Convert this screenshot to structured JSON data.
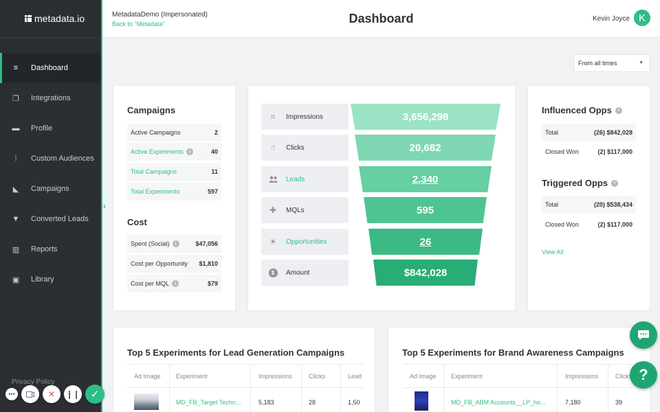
{
  "app": {
    "logo": "metadata.io",
    "title": "Dashboard"
  },
  "header": {
    "impersonation": "MetadataDemo (Impersonated)",
    "back_link": "Back to \"Metadata\"",
    "user_name": "Kevin Joyce",
    "avatar_initial": "K"
  },
  "sidebar": {
    "items": [
      {
        "label": "Dashboard",
        "icon": "database-icon",
        "glyph": "≡"
      },
      {
        "label": "Integrations",
        "icon": "integrations-icon",
        "glyph": "❐"
      },
      {
        "label": "Profile",
        "icon": "folder-icon",
        "glyph": "▬"
      },
      {
        "label": "Custom Audiences",
        "icon": "sliders-icon",
        "glyph": "⁞"
      },
      {
        "label": "Campaigns",
        "icon": "megaphone-icon",
        "glyph": "◣"
      },
      {
        "label": "Converted Leads",
        "icon": "filter-icon",
        "glyph": "▼"
      },
      {
        "label": "Reports",
        "icon": "bar-chart-icon",
        "glyph": "▥"
      },
      {
        "label": "Library",
        "icon": "image-icon",
        "glyph": "▣"
      }
    ],
    "privacy": "Privacy Policy"
  },
  "time_filter": {
    "value": "From all times"
  },
  "campaigns": {
    "title": "Campaigns",
    "rows": [
      {
        "label": "Active Campaigns",
        "value": "2"
      },
      {
        "label": "Active Experiments",
        "value": "40"
      },
      {
        "label": "Total Campaigns",
        "value": "11"
      },
      {
        "label": "Total Experiments",
        "value": "597"
      }
    ]
  },
  "cost": {
    "title": "Cost",
    "rows": [
      {
        "label": "Spent (Social)",
        "value": "$47,056"
      },
      {
        "label": "Cost per Opportunity",
        "value": "$1,810"
      },
      {
        "label": "Cost per MQL",
        "value": "$79"
      }
    ]
  },
  "funnel": [
    {
      "label": "Impressions",
      "value": "3,656,298",
      "icon": "scan-icon",
      "glyph": "⌗",
      "color": "#9be3c5"
    },
    {
      "label": "Clicks",
      "value": "20,682",
      "icon": "pointer-icon",
      "glyph": "☝",
      "color": "#7fd8b3"
    },
    {
      "label": "Leads",
      "value": "2,340",
      "icon": "users-icon",
      "glyph": "👥",
      "color": "#66cfa3"
    },
    {
      "label": "MQLs",
      "value": "595",
      "icon": "user-plus-icon",
      "glyph": "✚",
      "color": "#4fc493"
    },
    {
      "label": "Opportunities",
      "value": "26",
      "icon": "bulb-icon",
      "glyph": "☀",
      "color": "#3cb985"
    },
    {
      "label": "Amount",
      "value": "$842,028",
      "icon": "dollar-icon",
      "glyph": "$",
      "color": "#2aac76"
    }
  ],
  "influenced": {
    "title": "Influenced Opps",
    "rows": [
      {
        "label": "Total",
        "value": "(26) $842,028"
      },
      {
        "label": "Closed Won",
        "value": "(2) $117,000"
      }
    ]
  },
  "triggered": {
    "title": "Triggered Opps",
    "rows": [
      {
        "label": "Total",
        "value": "(20) $538,434"
      },
      {
        "label": "Closed Won",
        "value": "(2) $117,000"
      }
    ],
    "view_all": "View All"
  },
  "lead_table": {
    "title": "Top 5 Experiments for Lead Generation Campaigns",
    "headers": [
      "Ad Image",
      "Experiment",
      "Impressions",
      "Clicks",
      "Lead"
    ],
    "row": {
      "experiment": "MD_FB_Target Techn...",
      "impressions": "5,183",
      "clicks": "28",
      "lead": "1,50"
    }
  },
  "brand_table": {
    "title": "Top 5 Experiments for Brand Awareness Campaigns",
    "headers": [
      "Ad Image",
      "Experiment",
      "Impressions",
      "Clicks"
    ],
    "row": {
      "experiment": "MD_FB_ABM Accounts__LP_ho...",
      "impressions": "7,180",
      "clicks": "39"
    }
  },
  "fabs": {
    "help": "?"
  }
}
